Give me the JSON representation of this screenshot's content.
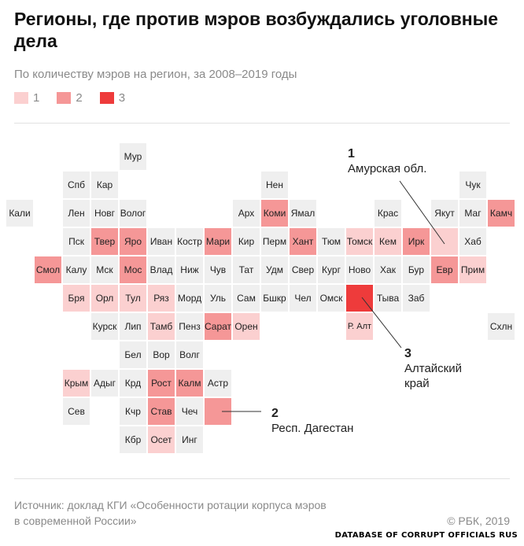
{
  "header": {
    "title": "Регионы, где против мэров возбуждались уголовные дела",
    "subtitle": "По количеству мэров на регион, за 2008–2019 годы"
  },
  "legend": [
    {
      "label": "1",
      "color": "#fbd0d0"
    },
    {
      "label": "2",
      "color": "#f59797"
    },
    {
      "label": "3",
      "color": "#ee3b3b"
    }
  ],
  "colors": {
    "empty": "#efefef",
    "level_1": "#fbd0d0",
    "level_2": "#f59797",
    "level_3": "#ee3b3b"
  },
  "callouts": {
    "amur": {
      "number": "1",
      "label": "Амурская обл."
    },
    "altai": {
      "number": "3",
      "line1": "Алтайский",
      "line2": "край"
    },
    "dagestan": {
      "number": "2",
      "label": "Респ. Дагестан"
    }
  },
  "chart_data": {
    "type": "heatmap",
    "title": "Регионы, где против мэров возбуждались уголовные дела",
    "subtitle": "По количеству мэров на регион, за 2008–2019 годы",
    "legend": [
      "1",
      "2",
      "3"
    ],
    "cells": [
      {
        "label": "Мур",
        "col": 4,
        "row": 0,
        "value": 0
      },
      {
        "label": "Спб",
        "col": 2,
        "row": 1,
        "value": 0
      },
      {
        "label": "Кар",
        "col": 3,
        "row": 1,
        "value": 0
      },
      {
        "label": "Нен",
        "col": 9,
        "row": 1,
        "value": 0
      },
      {
        "label": "Чук",
        "col": 16,
        "row": 1,
        "value": 0
      },
      {
        "label": "Кали",
        "col": 0,
        "row": 2,
        "value": 0
      },
      {
        "label": "Лен",
        "col": 2,
        "row": 2,
        "value": 0
      },
      {
        "label": "Новг",
        "col": 3,
        "row": 2,
        "value": 0
      },
      {
        "label": "Волог",
        "col": 4,
        "row": 2,
        "value": 0
      },
      {
        "label": "Арх",
        "col": 8,
        "row": 2,
        "value": 0
      },
      {
        "label": "Коми",
        "col": 9,
        "row": 2,
        "value": 2
      },
      {
        "label": "Ямал",
        "col": 10,
        "row": 2,
        "value": 0
      },
      {
        "label": "Крас",
        "col": 13,
        "row": 2,
        "value": 0
      },
      {
        "label": "Якут",
        "col": 15,
        "row": 2,
        "value": 0
      },
      {
        "label": "Маг",
        "col": 16,
        "row": 2,
        "value": 0
      },
      {
        "label": "Камч",
        "col": 17,
        "row": 2,
        "value": 2
      },
      {
        "label": "Пск",
        "col": 2,
        "row": 3,
        "value": 0
      },
      {
        "label": "Твер",
        "col": 3,
        "row": 3,
        "value": 2
      },
      {
        "label": "Яро",
        "col": 4,
        "row": 3,
        "value": 2
      },
      {
        "label": "Иван",
        "col": 5,
        "row": 3,
        "value": 0
      },
      {
        "label": "Костр",
        "col": 6,
        "row": 3,
        "value": 0
      },
      {
        "label": "Мари",
        "col": 7,
        "row": 3,
        "value": 2
      },
      {
        "label": "Кир",
        "col": 8,
        "row": 3,
        "value": 0
      },
      {
        "label": "Перм",
        "col": 9,
        "row": 3,
        "value": 0
      },
      {
        "label": "Хант",
        "col": 10,
        "row": 3,
        "value": 2
      },
      {
        "label": "Тюм",
        "col": 11,
        "row": 3,
        "value": 0
      },
      {
        "label": "Томск",
        "col": 12,
        "row": 3,
        "value": 1
      },
      {
        "label": "Кем",
        "col": 13,
        "row": 3,
        "value": 1
      },
      {
        "label": "Ирк",
        "col": 14,
        "row": 3,
        "value": 2
      },
      {
        "label": "",
        "col": 15,
        "row": 3,
        "value": 1
      },
      {
        "label": "Хаб",
        "col": 16,
        "row": 3,
        "value": 0
      },
      {
        "label": "Смол",
        "col": 1,
        "row": 4,
        "value": 2
      },
      {
        "label": "Калу",
        "col": 2,
        "row": 4,
        "value": 0
      },
      {
        "label": "Мск",
        "col": 3,
        "row": 4,
        "value": 0
      },
      {
        "label": "Мос",
        "col": 4,
        "row": 4,
        "value": 2
      },
      {
        "label": "Влад",
        "col": 5,
        "row": 4,
        "value": 0
      },
      {
        "label": "Ниж",
        "col": 6,
        "row": 4,
        "value": 0
      },
      {
        "label": "Чув",
        "col": 7,
        "row": 4,
        "value": 0
      },
      {
        "label": "Тат",
        "col": 8,
        "row": 4,
        "value": 0
      },
      {
        "label": "Удм",
        "col": 9,
        "row": 4,
        "value": 0
      },
      {
        "label": "Свер",
        "col": 10,
        "row": 4,
        "value": 0
      },
      {
        "label": "Кург",
        "col": 11,
        "row": 4,
        "value": 0
      },
      {
        "label": "Ново",
        "col": 12,
        "row": 4,
        "value": 0
      },
      {
        "label": "Хак",
        "col": 13,
        "row": 4,
        "value": 0
      },
      {
        "label": "Бур",
        "col": 14,
        "row": 4,
        "value": 0
      },
      {
        "label": "Евр",
        "col": 15,
        "row": 4,
        "value": 2
      },
      {
        "label": "Прим",
        "col": 16,
        "row": 4,
        "value": 1
      },
      {
        "label": "Бря",
        "col": 2,
        "row": 5,
        "value": 1
      },
      {
        "label": "Орл",
        "col": 3,
        "row": 5,
        "value": 1
      },
      {
        "label": "Тул",
        "col": 4,
        "row": 5,
        "value": 1
      },
      {
        "label": "Ряз",
        "col": 5,
        "row": 5,
        "value": 1
      },
      {
        "label": "Морд",
        "col": 6,
        "row": 5,
        "value": 0
      },
      {
        "label": "Уль",
        "col": 7,
        "row": 5,
        "value": 0
      },
      {
        "label": "Сам",
        "col": 8,
        "row": 5,
        "value": 0
      },
      {
        "label": "Бшкр",
        "col": 9,
        "row": 5,
        "value": 0
      },
      {
        "label": "Чел",
        "col": 10,
        "row": 5,
        "value": 0
      },
      {
        "label": "Омск",
        "col": 11,
        "row": 5,
        "value": 0
      },
      {
        "label": "",
        "col": 12,
        "row": 5,
        "value": 3
      },
      {
        "label": "Тыва",
        "col": 13,
        "row": 5,
        "value": 0
      },
      {
        "label": "Заб",
        "col": 14,
        "row": 5,
        "value": 0
      },
      {
        "label": "Курск",
        "col": 3,
        "row": 6,
        "value": 0
      },
      {
        "label": "Лип",
        "col": 4,
        "row": 6,
        "value": 0
      },
      {
        "label": "Тамб",
        "col": 5,
        "row": 6,
        "value": 1
      },
      {
        "label": "Пенз",
        "col": 6,
        "row": 6,
        "value": 0
      },
      {
        "label": "Сарат",
        "col": 7,
        "row": 6,
        "value": 2
      },
      {
        "label": "Орен",
        "col": 8,
        "row": 6,
        "value": 1
      },
      {
        "label": "Р. Алт",
        "col": 12,
        "row": 6,
        "value": 1
      },
      {
        "label": "Схлн",
        "col": 17,
        "row": 6,
        "value": 0
      },
      {
        "label": "Бел",
        "col": 4,
        "row": 7,
        "value": 0
      },
      {
        "label": "Вор",
        "col": 5,
        "row": 7,
        "value": 0
      },
      {
        "label": "Волг",
        "col": 6,
        "row": 7,
        "value": 0
      },
      {
        "label": "Крым",
        "col": 2,
        "row": 8,
        "value": 1
      },
      {
        "label": "Адыг",
        "col": 3,
        "row": 8,
        "value": 0
      },
      {
        "label": "Крд",
        "col": 4,
        "row": 8,
        "value": 0
      },
      {
        "label": "Рост",
        "col": 5,
        "row": 8,
        "value": 2
      },
      {
        "label": "Калм",
        "col": 6,
        "row": 8,
        "value": 2
      },
      {
        "label": "Астр",
        "col": 7,
        "row": 8,
        "value": 0
      },
      {
        "label": "Сев",
        "col": 2,
        "row": 9,
        "value": 0
      },
      {
        "label": "Кчр",
        "col": 4,
        "row": 9,
        "value": 0
      },
      {
        "label": "Став",
        "col": 5,
        "row": 9,
        "value": 2
      },
      {
        "label": "Чеч",
        "col": 6,
        "row": 9,
        "value": 0
      },
      {
        "label": "",
        "col": 7,
        "row": 9,
        "value": 2
      },
      {
        "label": "Кбр",
        "col": 4,
        "row": 10,
        "value": 0
      },
      {
        "label": "Осет",
        "col": 5,
        "row": 10,
        "value": 1
      },
      {
        "label": "Инг",
        "col": 6,
        "row": 10,
        "value": 0
      }
    ]
  },
  "footer": {
    "source_line1": "Источник: доклад КГИ «Особенности ротации корпуса мэров",
    "source_line2": "в современной России»",
    "copyright": "© РБК, 2019",
    "watermark": "DATABASE OF CORRUPT OFFICIALS RUS"
  }
}
